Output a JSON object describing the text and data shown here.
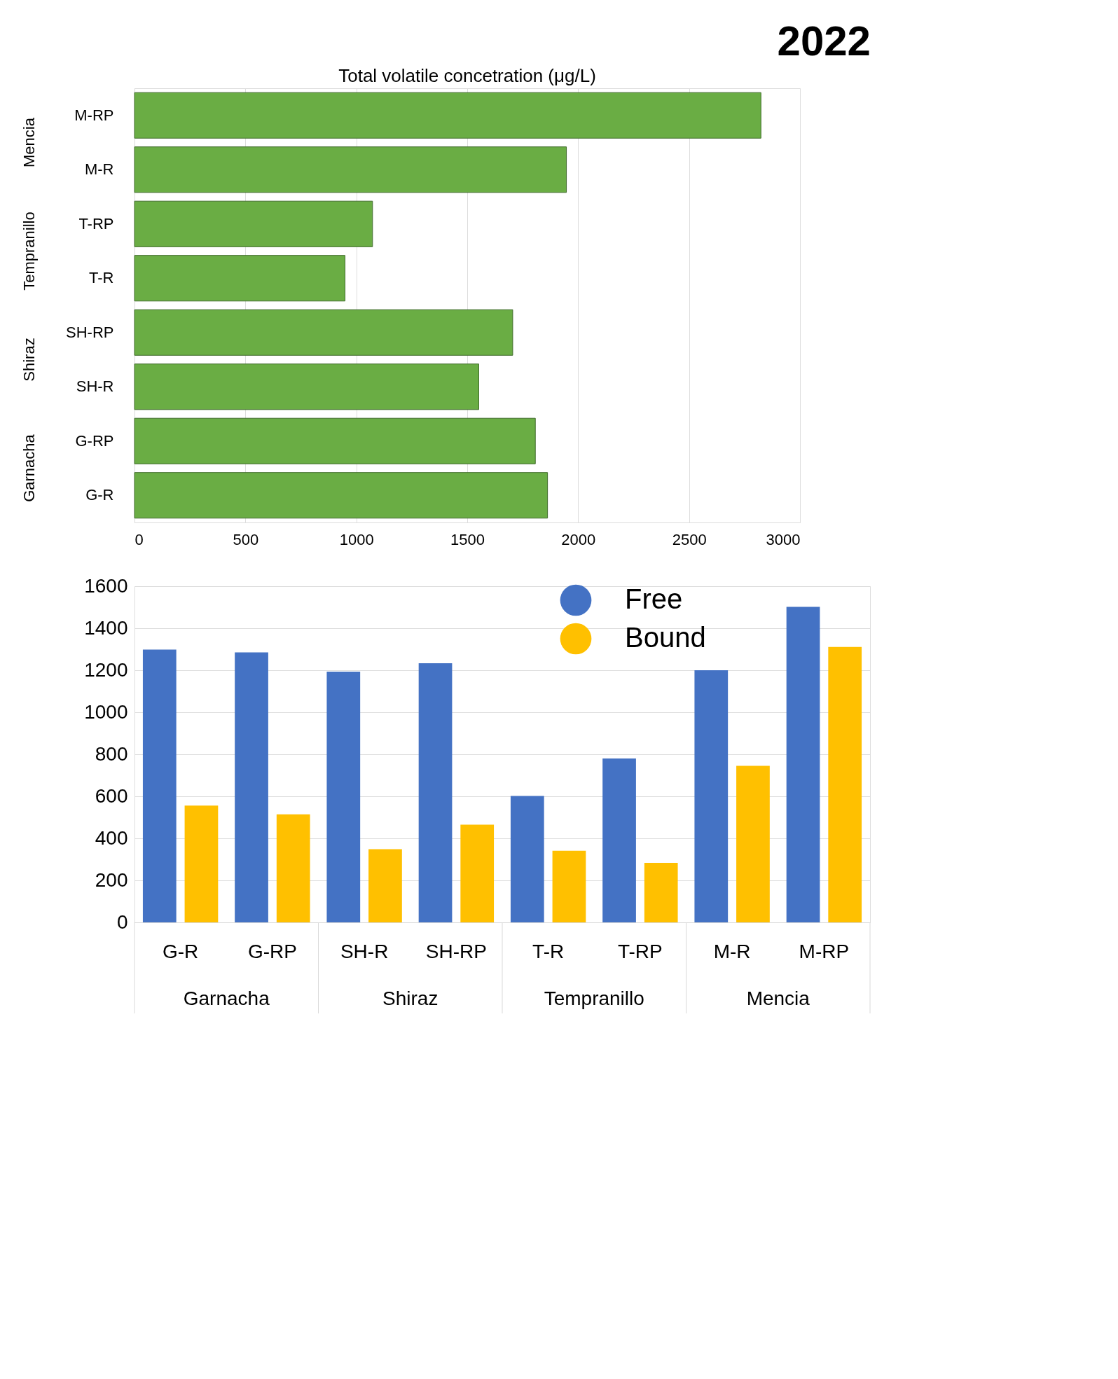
{
  "chart_data": [
    {
      "type": "bar",
      "title": "2022",
      "subtitle": "Total volatile concetration (μg/L)",
      "orientation": "horizontal",
      "categories": [
        "M-RP",
        "M-R",
        "T-RP",
        "T-R",
        "SH-RP",
        "SH-R",
        "G-RP",
        "G-R"
      ],
      "values": [
        2824,
        1947,
        1073,
        949,
        1705,
        1552,
        1807,
        1862
      ],
      "color": "#6aad44",
      "xlim": [
        0,
        3000
      ],
      "xticks": [
        0,
        500,
        1000,
        1500,
        2000,
        2500,
        3000
      ],
      "grid": "x",
      "annotations": [
        "Mencia",
        "Tempranillo",
        "Shiraz",
        "Garnacha"
      ]
    },
    {
      "type": "bar",
      "categories": [
        "G-R",
        "G-RP",
        "SH-R",
        "SH-RP",
        "T-R",
        "T-RP",
        "M-R",
        "M-RP"
      ],
      "series": [
        {
          "name": "Free",
          "color": "#4472c4",
          "values": [
            1298,
            1285,
            1193,
            1233,
            602,
            780,
            1200,
            1502
          ]
        },
        {
          "name": "Bound",
          "color": "#ffc000",
          "values": [
            556,
            514,
            348,
            465,
            341,
            283,
            745,
            1311
          ]
        }
      ],
      "ylim": [
        0,
        1600
      ],
      "yticks": [
        0,
        200,
        400,
        600,
        800,
        1000,
        1200,
        1400,
        1600
      ],
      "grid": "y",
      "legend": "top right",
      "annotations": [
        "Garnacha",
        "Shiraz",
        "Tempranillo",
        "Mencia"
      ]
    }
  ]
}
